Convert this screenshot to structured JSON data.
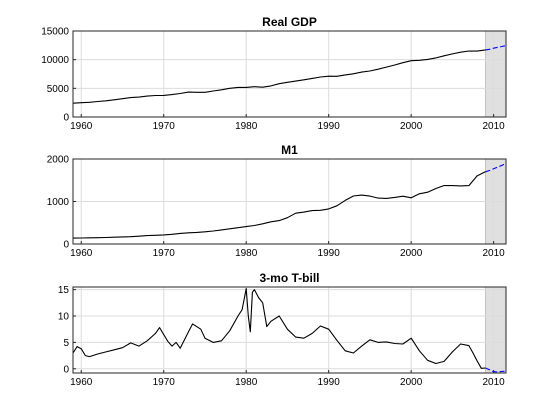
{
  "chart_data": [
    {
      "type": "line",
      "title": "Real GDP",
      "xlim": [
        1959,
        2011.5
      ],
      "ylim": [
        0,
        15000
      ],
      "xticks": [
        "1960",
        "1970",
        "1980",
        "1990",
        "2000",
        "2010"
      ],
      "yticks": [
        "0",
        "5000",
        "10000",
        "15000"
      ],
      "grid": true,
      "shaded_region": [
        2009,
        2011.5
      ],
      "series": [
        {
          "role": "historical",
          "color": "#000000",
          "x": [
            1959,
            1960,
            1961,
            1962,
            1963,
            1964,
            1965,
            1966,
            1967,
            1968,
            1969,
            1970,
            1971,
            1972,
            1973,
            1974,
            1975,
            1976,
            1977,
            1978,
            1979,
            1980,
            1981,
            1982,
            1983,
            1984,
            1985,
            1986,
            1987,
            1988,
            1989,
            1990,
            1991,
            1992,
            1993,
            1994,
            1995,
            1996,
            1997,
            1998,
            1999,
            2000,
            2001,
            2002,
            2003,
            2004,
            2005,
            2006,
            2007,
            2008,
            2009
          ],
          "values": [
            2400,
            2500,
            2560,
            2700,
            2830,
            3000,
            3190,
            3380,
            3470,
            3640,
            3750,
            3770,
            3900,
            4100,
            4340,
            4310,
            4300,
            4530,
            4740,
            5000,
            5170,
            5160,
            5290,
            5190,
            5420,
            5810,
            6050,
            6260,
            6480,
            6740,
            6980,
            7110,
            7100,
            7340,
            7530,
            7840,
            8030,
            8330,
            8700,
            9070,
            9470,
            9820,
            9890,
            10050,
            10300,
            10680,
            11000,
            11300,
            11520,
            11500,
            11700
          ]
        },
        {
          "role": "forecast",
          "color": "#0000ff",
          "x": [
            2009,
            2009.5,
            2010,
            2010.5,
            2011,
            2011.5
          ],
          "values": [
            11700,
            11800,
            12000,
            12150,
            12300,
            12450
          ]
        }
      ]
    },
    {
      "type": "line",
      "title": "M1",
      "xlim": [
        1959,
        2011.5
      ],
      "ylim": [
        0,
        2000
      ],
      "xticks": [
        "1960",
        "1970",
        "1980",
        "1990",
        "2000",
        "2010"
      ],
      "yticks": [
        "0",
        "1000",
        "2000"
      ],
      "grid": true,
      "shaded_region": [
        2009,
        2011.5
      ],
      "series": [
        {
          "role": "historical",
          "color": "#000000",
          "x": [
            1959,
            1960,
            1961,
            1962,
            1963,
            1964,
            1965,
            1966,
            1967,
            1968,
            1969,
            1970,
            1971,
            1972,
            1973,
            1974,
            1975,
            1976,
            1977,
            1978,
            1979,
            1980,
            1981,
            1982,
            1983,
            1984,
            1985,
            1986,
            1987,
            1988,
            1989,
            1990,
            1991,
            1992,
            1993,
            1994,
            1995,
            1996,
            1997,
            1998,
            1999,
            2000,
            2001,
            2002,
            2003,
            2004,
            2005,
            2006,
            2007,
            2008,
            2009
          ],
          "values": [
            140,
            141,
            145,
            148,
            153,
            160,
            167,
            172,
            183,
            197,
            204,
            214,
            228,
            249,
            263,
            274,
            287,
            306,
            331,
            358,
            383,
            409,
            436,
            475,
            522,
            551,
            620,
            725,
            750,
            786,
            793,
            825,
            898,
            1025,
            1130,
            1150,
            1127,
            1081,
            1073,
            1097,
            1125,
            1088,
            1182,
            1219,
            1305,
            1376,
            1375,
            1366,
            1373,
            1602,
            1700
          ]
        },
        {
          "role": "forecast",
          "color": "#0000ff",
          "x": [
            2009,
            2009.5,
            2010,
            2010.5,
            2011,
            2011.5
          ],
          "values": [
            1700,
            1730,
            1770,
            1810,
            1850,
            1900
          ]
        }
      ]
    },
    {
      "type": "line",
      "title": "3-mo T-bill",
      "xlim": [
        1959,
        2011.5
      ],
      "ylim": [
        -0.8,
        15.5
      ],
      "xticks": [
        "1960",
        "1970",
        "1980",
        "1990",
        "2000",
        "2010"
      ],
      "yticks": [
        "0",
        "5",
        "10",
        "15"
      ],
      "grid": true,
      "shaded_region": [
        2009,
        2011.5
      ],
      "series": [
        {
          "role": "historical",
          "color": "#000000",
          "x": [
            1959,
            1959.5,
            1960,
            1960.5,
            1961,
            1962,
            1963,
            1964,
            1965,
            1966,
            1967,
            1968,
            1969,
            1969.5,
            1970,
            1970.5,
            1971,
            1971.5,
            1972,
            1973,
            1973.5,
            1974,
            1974.5,
            1975,
            1976,
            1977,
            1978,
            1979,
            1979.5,
            1980,
            1980.25,
            1980.5,
            1980.75,
            1981,
            1981.5,
            1982,
            1982.5,
            1983,
            1984,
            1985,
            1986,
            1987,
            1988,
            1989,
            1990,
            1991,
            1992,
            1993,
            1994,
            1995,
            1996,
            1997,
            1998,
            1999,
            2000,
            2001,
            2002,
            2003,
            2004,
            2005,
            2006,
            2007,
            2007.5,
            2008,
            2008.5,
            2009
          ],
          "values": [
            3.0,
            4.2,
            3.8,
            2.5,
            2.3,
            2.8,
            3.2,
            3.6,
            4.0,
            4.9,
            4.3,
            5.3,
            6.7,
            7.8,
            6.5,
            5.2,
            4.3,
            5.0,
            3.9,
            7.0,
            8.5,
            8.0,
            7.5,
            5.8,
            5.0,
            5.3,
            7.2,
            10.0,
            11.2,
            15.2,
            10.0,
            7.0,
            14.5,
            15.0,
            13.5,
            12.5,
            8.0,
            9.0,
            10.0,
            7.5,
            6.0,
            5.8,
            6.7,
            8.1,
            7.5,
            5.4,
            3.4,
            3.0,
            4.3,
            5.5,
            5.0,
            5.1,
            4.8,
            4.7,
            5.8,
            3.4,
            1.6,
            1.0,
            1.4,
            3.2,
            4.7,
            4.4,
            3.0,
            1.5,
            0.1,
            0.15
          ]
        },
        {
          "role": "forecast",
          "color": "#0000ff",
          "x": [
            2009,
            2009.5,
            2010,
            2010.5,
            2011,
            2011.5
          ],
          "values": [
            0.15,
            -0.2,
            -0.55,
            -0.6,
            -0.5,
            -0.45
          ]
        }
      ]
    }
  ]
}
